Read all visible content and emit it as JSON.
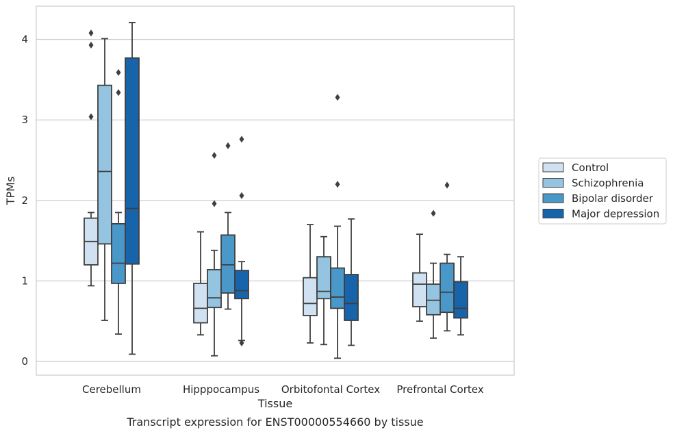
{
  "caption": "Transcript expression for ENST00000554660 by tissue",
  "chart_data": {
    "type": "box",
    "xlabel": "Tissue",
    "ylabel": "TPMs",
    "ylim": [
      -0.17,
      4.4
    ],
    "yticks": [
      0,
      1,
      2,
      3,
      4
    ],
    "grid": "horizontal",
    "legend_position": "right",
    "categories": [
      "Cerebellum",
      "Hipppocampus",
      "Orbitofontal Cortex",
      "Prefrontal Cortex"
    ],
    "series": [
      {
        "name": "Control",
        "color": "#d0e1f2",
        "boxes": [
          {
            "whisker_low": 0.94,
            "q1": 1.2,
            "median": 1.49,
            "q3": 1.78,
            "whisker_high": 1.85,
            "outliers": [
              3.04,
              3.93,
              4.08
            ]
          },
          {
            "whisker_low": 0.33,
            "q1": 0.48,
            "median": 0.66,
            "q3": 0.97,
            "whisker_high": 1.61,
            "outliers": []
          },
          {
            "whisker_low": 0.23,
            "q1": 0.57,
            "median": 0.72,
            "q3": 1.04,
            "whisker_high": 1.7,
            "outliers": []
          },
          {
            "whisker_low": 0.5,
            "q1": 0.68,
            "median": 0.96,
            "q3": 1.1,
            "whisker_high": 1.58,
            "outliers": []
          }
        ]
      },
      {
        "name": "Schizophrenia",
        "color": "#94c4df",
        "boxes": [
          {
            "whisker_low": 0.51,
            "q1": 1.46,
            "median": 2.36,
            "q3": 3.43,
            "whisker_high": 4.01,
            "outliers": []
          },
          {
            "whisker_low": 0.07,
            "q1": 0.67,
            "median": 0.79,
            "q3": 1.14,
            "whisker_high": 1.38,
            "outliers": [
              1.96,
              2.56
            ]
          },
          {
            "whisker_low": 0.21,
            "q1": 0.78,
            "median": 0.87,
            "q3": 1.3,
            "whisker_high": 1.55,
            "outliers": []
          },
          {
            "whisker_low": 0.29,
            "q1": 0.58,
            "median": 0.76,
            "q3": 0.96,
            "whisker_high": 1.22,
            "outliers": [
              1.84
            ]
          }
        ]
      },
      {
        "name": "Bipolar disorder",
        "color": "#4a98c9",
        "boxes": [
          {
            "whisker_low": 0.34,
            "q1": 0.97,
            "median": 1.22,
            "q3": 1.71,
            "whisker_high": 1.85,
            "outliers": [
              3.34,
              3.59
            ]
          },
          {
            "whisker_low": 0.65,
            "q1": 0.85,
            "median": 1.2,
            "q3": 1.57,
            "whisker_high": 1.85,
            "outliers": [
              2.68
            ]
          },
          {
            "whisker_low": 0.04,
            "q1": 0.66,
            "median": 0.8,
            "q3": 1.16,
            "whisker_high": 1.68,
            "outliers": [
              2.2,
              3.28
            ]
          },
          {
            "whisker_low": 0.38,
            "q1": 0.61,
            "median": 0.86,
            "q3": 1.22,
            "whisker_high": 1.33,
            "outliers": [
              2.19
            ]
          }
        ]
      },
      {
        "name": "Major depression",
        "color": "#1764ab",
        "boxes": [
          {
            "whisker_low": 0.09,
            "q1": 1.21,
            "median": 1.9,
            "q3": 3.77,
            "whisker_high": 4.21,
            "outliers": []
          },
          {
            "whisker_low": 0.26,
            "q1": 0.78,
            "median": 0.88,
            "q3": 1.13,
            "whisker_high": 1.24,
            "outliers": [
              0.23,
              2.06,
              2.76
            ]
          },
          {
            "whisker_low": 0.2,
            "q1": 0.51,
            "median": 0.72,
            "q3": 1.08,
            "whisker_high": 1.77,
            "outliers": []
          },
          {
            "whisker_low": 0.33,
            "q1": 0.54,
            "median": 0.66,
            "q3": 0.99,
            "whisker_high": 1.3,
            "outliers": []
          }
        ]
      }
    ]
  }
}
